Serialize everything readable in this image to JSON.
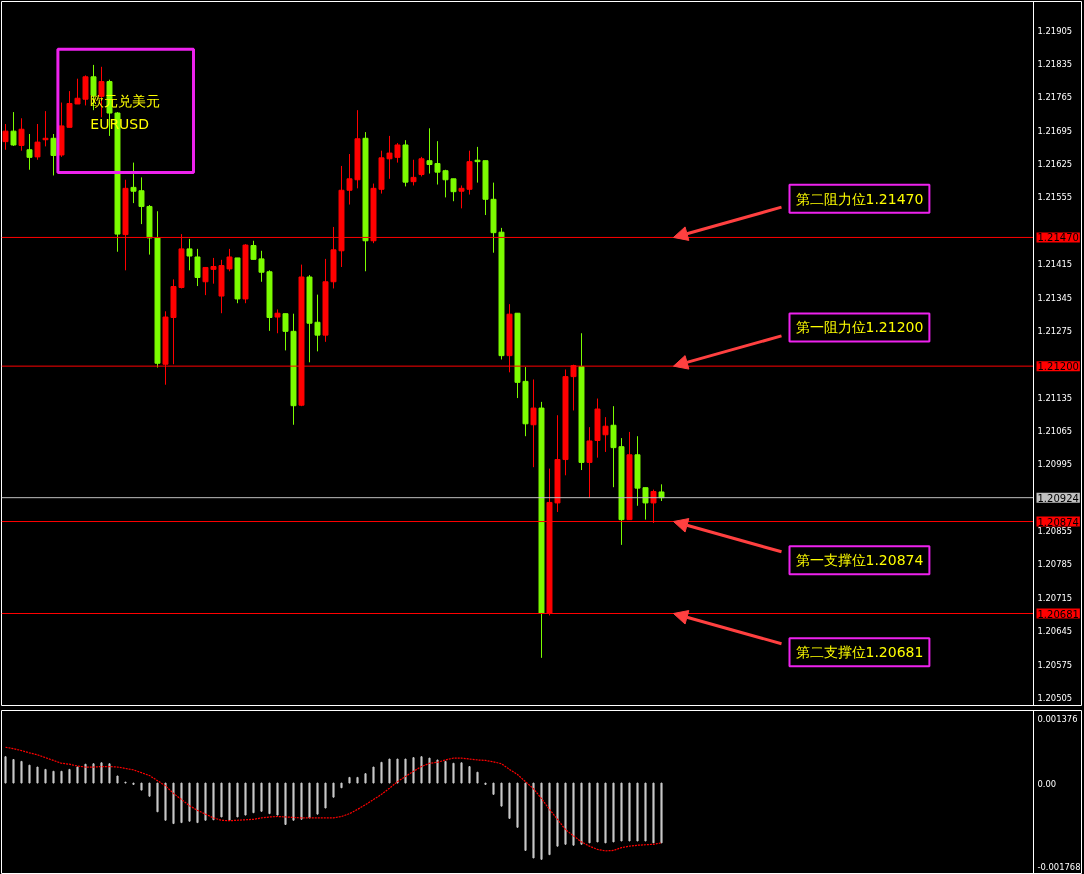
{
  "chart_data": [
    {
      "type": "candlestick",
      "title": "欧元兑美元",
      "subtitle": "EURUSD",
      "categories": [
        null,
        null,
        null,
        null,
        null,
        null,
        null,
        null,
        null,
        null,
        null,
        null,
        null,
        null,
        null,
        null,
        null,
        null,
        null,
        null,
        null,
        null,
        null,
        null,
        null,
        null,
        null,
        null,
        null,
        null,
        null,
        null,
        null,
        null,
        null,
        null,
        null,
        null,
        null,
        null,
        null,
        null,
        null,
        null,
        null,
        null,
        null,
        null,
        null,
        null,
        null,
        null,
        null,
        null,
        null,
        null,
        null,
        null,
        null,
        null,
        null,
        null,
        null,
        null,
        null,
        null,
        null,
        null,
        null,
        null,
        null,
        null,
        null,
        null,
        null,
        null,
        null,
        null,
        null,
        null,
        null,
        null,
        null,
        null,
        null,
        null,
        null,
        null,
        null,
        null,
        null,
        null,
        null,
        null,
        null,
        null,
        null,
        null,
        null,
        null,
        null,
        null,
        null,
        null,
        null,
        null,
        null,
        null,
        null,
        null,
        null,
        null,
        null,
        null,
        null,
        null,
        null,
        null,
        null,
        null,
        null,
        null,
        null,
        null,
        null,
        null,
        null,
        null,
        null,
        null,
        null,
        null,
        null,
        null,
        null
      ],
      "ohlc": [
        [
          1.21671,
          1.21708,
          1.21654,
          1.21693
        ],
        [
          1.21693,
          1.21733,
          1.21662,
          1.21664
        ],
        [
          1.21663,
          1.2172,
          1.21652,
          1.21697
        ],
        [
          1.21654,
          1.21687,
          1.21612,
          1.21638
        ],
        [
          1.21639,
          1.21708,
          1.21633,
          1.2167
        ],
        [
          1.21675,
          1.21735,
          1.21661,
          1.21678
        ],
        [
          1.21678,
          1.21687,
          1.216,
          1.21642
        ],
        [
          1.21643,
          1.21753,
          1.21639,
          1.21704
        ],
        [
          1.21701,
          1.21777,
          1.21701,
          1.21751
        ],
        [
          1.2175,
          1.21803,
          1.2175,
          1.21762
        ],
        [
          1.2176,
          1.2181,
          1.21747,
          1.21807
        ],
        [
          1.21807,
          1.21832,
          1.21737,
          1.21768
        ],
        [
          1.21766,
          1.21828,
          1.21722,
          1.21797
        ],
        [
          1.21797,
          1.21801,
          1.21683,
          1.21731
        ],
        [
          1.21731,
          1.21733,
          1.2144,
          1.21477
        ],
        [
          1.21476,
          1.21591,
          1.21401,
          1.21573
        ],
        [
          1.21575,
          1.21627,
          1.21542,
          1.21567
        ],
        [
          1.21568,
          1.21596,
          1.21498,
          1.21535
        ],
        [
          1.21535,
          1.21538,
          1.21434,
          1.21469
        ],
        [
          1.21469,
          1.21525,
          1.21197,
          1.21206
        ],
        [
          1.21204,
          1.21315,
          1.21161,
          1.21303
        ],
        [
          1.21302,
          1.21382,
          1.21204,
          1.21367
        ],
        [
          1.21365,
          1.21477,
          1.21363,
          1.21446
        ],
        [
          1.21446,
          1.21467,
          1.21401,
          1.21431
        ],
        [
          1.21429,
          1.21446,
          1.21368,
          1.21386
        ],
        [
          1.21377,
          1.21407,
          1.21349,
          1.21407
        ],
        [
          1.21403,
          1.21427,
          1.21373,
          1.21409
        ],
        [
          1.21347,
          1.21423,
          1.21311,
          1.21411
        ],
        [
          1.21404,
          1.21446,
          1.21399,
          1.21429
        ],
        [
          1.21427,
          1.21427,
          1.21332,
          1.21341
        ],
        [
          1.21341,
          1.21456,
          1.21332,
          1.21454
        ],
        [
          1.21453,
          1.21463,
          1.21424,
          1.21424
        ],
        [
          1.21425,
          1.21442,
          1.21377,
          1.21397
        ],
        [
          1.21398,
          1.21401,
          1.21274,
          1.21302
        ],
        [
          1.21303,
          1.21319,
          1.21269,
          1.21311
        ],
        [
          1.2131,
          1.2131,
          1.21233,
          1.21273
        ],
        [
          1.21273,
          1.2131,
          1.21077,
          1.21117
        ],
        [
          1.21118,
          1.21413,
          1.21116,
          1.21387
        ],
        [
          1.21387,
          1.21391,
          1.21208,
          1.2129
        ],
        [
          1.21292,
          1.2135,
          1.21231,
          1.21265
        ],
        [
          1.21265,
          1.21425,
          1.21251,
          1.21377
        ],
        [
          1.21377,
          1.21492,
          1.21363,
          1.21444
        ],
        [
          1.21442,
          1.2162,
          1.21408,
          1.21569
        ],
        [
          1.21569,
          1.21645,
          1.21539,
          1.21593
        ],
        [
          1.21591,
          1.21737,
          1.21573,
          1.21677
        ],
        [
          1.21678,
          1.21691,
          1.21399,
          1.21463
        ],
        [
          1.21463,
          1.21583,
          1.21458,
          1.21573
        ],
        [
          1.21571,
          1.21652,
          1.21562,
          1.21637
        ],
        [
          1.21635,
          1.21683,
          1.21593,
          1.21647
        ],
        [
          1.21638,
          1.21668,
          1.21627,
          1.21664
        ],
        [
          1.21664,
          1.21674,
          1.21577,
          1.21586
        ],
        [
          1.21587,
          1.21633,
          1.21579,
          1.21596
        ],
        [
          1.21602,
          1.21639,
          1.21598,
          1.21635
        ],
        [
          1.21631,
          1.21699,
          1.21604,
          1.21623
        ],
        [
          1.21625,
          1.21672,
          1.21581,
          1.21607
        ],
        [
          1.2161,
          1.21612,
          1.21554,
          1.21591
        ],
        [
          1.21593,
          1.21593,
          1.21546,
          1.21566
        ],
        [
          1.21567,
          1.21579,
          1.21531,
          1.21573
        ],
        [
          1.21571,
          1.21652,
          1.2156,
          1.21629
        ],
        [
          1.21632,
          1.2166,
          1.21585,
          1.21629
        ],
        [
          1.21631,
          1.21631,
          1.21517,
          1.2155
        ],
        [
          1.2155,
          1.21585,
          1.21438,
          1.2148
        ],
        [
          1.21481,
          1.2149,
          1.21214,
          1.21222
        ],
        [
          1.21222,
          1.2133,
          1.21187,
          1.21309
        ],
        [
          1.21311,
          1.21311,
          1.21133,
          1.21166
        ],
        [
          1.21168,
          1.21198,
          1.21053,
          1.21079
        ],
        [
          1.21077,
          1.21172,
          1.20988,
          1.21112
        ],
        [
          1.21112,
          1.21125,
          1.20588,
          1.20682
        ],
        [
          1.20682,
          1.20985,
          1.20677,
          1.20914
        ],
        [
          1.20913,
          1.21097,
          1.20894,
          1.21004
        ],
        [
          1.21004,
          1.21193,
          1.20971,
          1.21178
        ],
        [
          1.21178,
          1.21203,
          1.21107,
          1.21201
        ],
        [
          1.21199,
          1.21269,
          1.20982,
          1.20998
        ],
        [
          1.20998,
          1.21072,
          1.20923,
          1.21043
        ],
        [
          1.21044,
          1.21132,
          1.21008,
          1.2111
        ],
        [
          1.21056,
          1.21093,
          1.2102,
          1.21074
        ],
        [
          1.21076,
          1.21116,
          1.20946,
          1.21029
        ],
        [
          1.21031,
          1.21049,
          1.20825,
          1.20878
        ],
        [
          1.20878,
          1.21062,
          1.20878,
          1.21014
        ],
        [
          1.21014,
          1.21053,
          1.20907,
          1.20944
        ],
        [
          1.20945,
          1.20945,
          1.20878,
          1.20913
        ],
        [
          1.20913,
          1.20941,
          1.20871,
          1.20937
        ],
        [
          1.20936,
          1.20952,
          1.20917,
          1.20924
        ],
        null,
        null,
        null,
        null,
        null,
        null,
        null,
        null,
        null,
        null,
        null,
        null,
        null,
        null,
        null,
        null,
        null,
        null,
        null,
        null,
        null,
        null,
        null,
        null,
        null,
        null,
        null,
        null,
        null,
        null,
        null,
        null,
        null,
        null,
        null,
        null,
        null,
        null,
        null,
        null,
        null,
        null,
        null,
        null,
        null,
        null,
        null,
        null,
        null,
        null,
        null,
        null
      ],
      "colors": [
        "#ff0000",
        "#7cfc00",
        "#ff0000",
        "#7cfc00",
        "#ff0000",
        "#ff0000",
        "#7cfc00",
        "#ff0000",
        "#ff0000",
        "#ff0000",
        "#ff0000",
        "#7cfc00",
        "#ff0000",
        "#7cfc00",
        "#7cfc00",
        "#ff0000",
        "#7cfc00",
        "#7cfc00",
        "#7cfc00",
        "#7cfc00",
        "#ff0000",
        "#ff0000",
        "#ff0000",
        "#7cfc00",
        "#7cfc00",
        "#ff0000",
        "#ff0000",
        "#ff0000",
        "#ff0000",
        "#7cfc00",
        "#ff0000",
        "#7cfc00",
        "#7cfc00",
        "#7cfc00",
        "#ff0000",
        "#7cfc00",
        "#7cfc00",
        "#ff0000",
        "#7cfc00",
        "#7cfc00",
        "#ff0000",
        "#ff0000",
        "#ff0000",
        "#ff0000",
        "#ff0000",
        "#7cfc00",
        "#ff0000",
        "#ff0000",
        "#ff0000",
        "#ff0000",
        "#7cfc00",
        "#ff0000",
        "#ff0000",
        "#7cfc00",
        "#7cfc00",
        "#7cfc00",
        "#7cfc00",
        "#ff0000",
        "#ff0000",
        "#7cfc00",
        "#7cfc00",
        "#7cfc00",
        "#7cfc00",
        "#ff0000",
        "#7cfc00",
        "#7cfc00",
        "#ff0000",
        "#7cfc00",
        "#ff0000",
        "#ff0000",
        "#ff0000",
        "#ff0000",
        "#7cfc00",
        "#ff0000",
        "#ff0000",
        "#ff0000",
        "#7cfc00",
        "#7cfc00",
        "#ff0000",
        "#7cfc00",
        "#7cfc00",
        "#ff0000",
        "#7cfc00",
        null,
        null,
        null,
        null,
        null,
        null,
        null,
        null,
        null,
        null,
        null,
        null,
        null,
        null,
        null,
        null,
        null,
        null,
        null,
        null,
        null,
        null,
        null,
        null,
        null,
        null,
        null,
        null,
        null,
        null,
        null,
        null,
        null,
        null,
        null,
        null,
        null,
        null,
        null,
        null,
        null,
        null,
        null,
        null,
        null,
        null,
        null,
        null,
        null,
        null,
        null,
        null
      ],
      "ylim": [
        1.20488,
        1.21965
      ],
      "yticks": [
        1.21905,
        1.21835,
        1.21765,
        1.21695,
        1.21625,
        1.21555,
        1.21415,
        1.21345,
        1.21275,
        1.21135,
        1.21065,
        1.20995,
        1.20855,
        1.20785,
        1.20715,
        1.20645,
        1.20575,
        1.20505
      ],
      "ref_lines": [
        {
          "axis": "y",
          "value": 1.2147,
          "label": "1.21470",
          "color": "#ff0000"
        },
        {
          "axis": "y",
          "value": 1.212,
          "label": "1.21200",
          "color": "#ff0000"
        },
        {
          "axis": "y",
          "value": 1.20924,
          "label": "1.20924",
          "color": "#c0c0c0"
        },
        {
          "axis": "y",
          "value": 1.20874,
          "label": "1.20874",
          "color": "#ff0000"
        },
        {
          "axis": "y",
          "value": 1.20681,
          "label": "1.20681",
          "color": "#ff0000"
        }
      ],
      "annotations": [
        {
          "text": "第二阻力位1.21470",
          "y": 1.2147
        },
        {
          "text": "第一阻力位1.21200",
          "y": 1.212
        },
        {
          "text": "第一支撑位1.20874",
          "y": 1.20874
        },
        {
          "text": "第二支撑位1.20681",
          "y": 1.20681
        }
      ],
      "tick_labels": "y"
    },
    {
      "type": "bar",
      "categories": [
        null,
        null,
        null,
        null,
        null,
        null,
        null,
        null,
        null,
        null,
        null,
        null,
        null,
        null,
        null,
        null,
        null,
        null,
        null,
        null,
        null,
        null,
        null,
        null,
        null,
        null,
        null,
        null,
        null,
        null,
        null,
        null,
        null,
        null,
        null,
        null,
        null,
        null,
        null,
        null,
        null,
        null,
        null,
        null,
        null,
        null,
        null,
        null,
        null,
        null,
        null,
        null,
        null,
        null,
        null,
        null,
        null,
        null,
        null,
        null,
        null,
        null,
        null,
        null,
        null,
        null,
        null,
        null,
        null,
        null,
        null,
        null,
        null,
        null,
        null,
        null,
        null,
        null,
        null,
        null,
        null,
        null,
        null,
        null,
        null,
        null,
        null,
        null,
        null,
        null,
        null,
        null,
        null,
        null,
        null,
        null,
        null,
        null,
        null,
        null,
        null,
        null,
        null,
        null,
        null,
        null,
        null,
        null,
        null,
        null,
        null,
        null,
        null,
        null,
        null,
        null,
        null,
        null,
        null,
        null,
        null,
        null,
        null,
        null,
        null,
        null,
        null,
        null,
        null,
        null,
        null,
        null,
        null,
        null,
        null
      ],
      "series": [
        {
          "type": "bar",
          "color": "#c8c8c8",
          "values": [
            0.00056,
            0.0005,
            0.00046,
            0.00038,
            0.00034,
            0.00029,
            0.00025,
            0.00025,
            0.00029,
            0.00034,
            0.0004,
            0.00041,
            0.00043,
            0.00041,
            0.00015,
            2e-05,
            -3e-05,
            -0.00015,
            -0.00028,
            -0.00061,
            -0.00079,
            -0.00086,
            -0.00084,
            -0.00081,
            -0.00084,
            -0.00079,
            -0.00078,
            -0.00072,
            -0.00079,
            -0.00072,
            -0.00068,
            -0.00063,
            -0.0006,
            -0.00065,
            -0.00068,
            -0.00088,
            -0.00079,
            -0.00077,
            -0.00074,
            -0.00066,
            -0.00053,
            -0.0003,
            -0.0001,
            0.00012,
            0.00012,
            0.0002,
            0.00034,
            0.00044,
            0.00051,
            0.00051,
            0.00051,
            0.00054,
            0.00056,
            0.00053,
            0.00049,
            0.00046,
            0.00042,
            0.00043,
            0.00035,
            0.00023,
            -3e-05,
            -0.00024,
            -0.00049,
            -0.00075,
            -0.00094,
            -0.00143,
            -0.00159,
            -0.00162,
            -0.00152,
            -0.00134,
            -0.0013,
            -0.00132,
            -0.0013,
            -0.00127,
            -0.00125,
            -0.00127,
            -0.00125,
            -0.00123,
            -0.00123,
            -0.00123,
            -0.00123,
            -0.00127,
            -0.00127,
            null,
            null,
            null,
            null,
            null,
            null,
            null,
            null,
            null,
            null,
            null,
            null,
            null,
            null,
            null,
            null,
            null,
            null,
            null,
            null,
            null,
            null,
            null,
            null,
            null,
            null,
            null,
            null,
            null,
            null,
            null,
            null,
            null,
            null,
            null,
            null,
            null,
            null,
            null,
            null,
            null,
            null,
            null,
            null,
            null,
            null,
            null,
            null,
            null,
            null,
            null,
            null
          ]
        },
        {
          "type": "line",
          "color": "#ff0000",
          "line_style": "dotted",
          "values": [
            0.00076,
            0.00073,
            0.00069,
            0.00064,
            0.0006,
            0.00054,
            0.00048,
            0.00042,
            0.0004,
            0.00036,
            0.00034,
            0.00034,
            0.00035,
            0.00035,
            0.00034,
            0.00031,
            0.00028,
            0.00022,
            0.00016,
            5e-05,
            -6e-05,
            -0.00022,
            -0.00035,
            -0.00048,
            -0.00058,
            -0.00066,
            -0.00074,
            -0.00079,
            -0.0008,
            -0.00079,
            -0.00078,
            -0.00077,
            -0.00074,
            -0.00072,
            -0.00071,
            -0.00072,
            -0.00073,
            -0.00074,
            -0.00074,
            -0.00074,
            -0.00074,
            -0.00074,
            -0.00071,
            -0.00065,
            -0.00056,
            -0.00046,
            -0.00035,
            -0.00024,
            -0.00011,
            3e-05,
            0.00014,
            0.00025,
            0.00035,
            0.00042,
            0.00044,
            0.00049,
            0.00053,
            0.00053,
            0.00051,
            0.00049,
            0.00048,
            0.00045,
            0.00041,
            0.00029,
            0.00018,
            3e-05,
            -0.00012,
            -0.00033,
            -0.00056,
            -0.00077,
            -0.00099,
            -0.00112,
            -0.00125,
            -0.00134,
            -0.00141,
            -0.00144,
            -0.00143,
            -0.00137,
            -0.00134,
            -0.00132,
            -0.00131,
            -0.0013,
            -0.00127,
            null,
            null,
            null,
            null,
            null,
            null,
            null,
            null,
            null,
            null,
            null,
            null,
            null,
            null,
            null,
            null,
            null,
            null,
            null,
            null,
            null,
            null,
            null,
            null,
            null,
            null,
            null,
            null,
            null,
            null,
            null,
            null,
            null,
            null,
            null,
            null,
            null,
            null,
            null,
            null,
            null,
            null,
            null,
            null,
            null,
            null,
            null,
            null,
            null,
            null,
            null,
            null
          ]
        }
      ],
      "ylim": [
        -0.00192,
        0.00154
      ],
      "yticks": [
        {
          "value": 0.001376,
          "label": "0.001376"
        },
        {
          "value": 0,
          "label": "0.00"
        },
        {
          "value": -0.001768,
          "label": "-0.001768"
        }
      ],
      "tick_labels": "y"
    }
  ]
}
